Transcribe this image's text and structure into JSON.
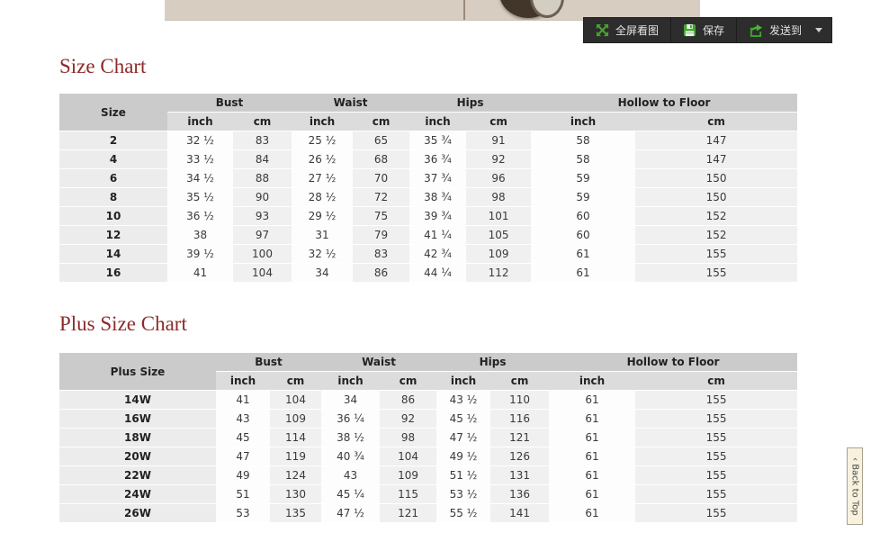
{
  "toolbar": {
    "buttons": [
      {
        "label": "全屏看图",
        "icon": "fullscreen-expand-icon"
      },
      {
        "label": "保存",
        "icon": "save-floppy-icon"
      },
      {
        "label": "发送到",
        "icon": "send-share-icon"
      }
    ],
    "bg": "#2d2d2d",
    "icon_green": "#3da62b"
  },
  "size_chart": {
    "title": "Size Chart",
    "header": {
      "size_label": "Size",
      "groups": [
        "Bust",
        "Waist",
        "Hips",
        "Hollow to Floor"
      ],
      "units": [
        "inch",
        "cm"
      ]
    },
    "rows": [
      [
        "2",
        "32 ½",
        "83",
        "25 ½",
        "65",
        "35 ¾",
        "91",
        "58",
        "147"
      ],
      [
        "4",
        "33 ½",
        "84",
        "26 ½",
        "68",
        "36 ¾",
        "92",
        "58",
        "147"
      ],
      [
        "6",
        "34 ½",
        "88",
        "27 ½",
        "70",
        "37 ¾",
        "96",
        "59",
        "150"
      ],
      [
        "8",
        "35 ½",
        "90",
        "28 ½",
        "72",
        "38 ¾",
        "98",
        "59",
        "150"
      ],
      [
        "10",
        "36 ½",
        "93",
        "29 ½",
        "75",
        "39 ¾",
        "101",
        "60",
        "152"
      ],
      [
        "12",
        "38",
        "97",
        "31",
        "79",
        "41 ¼",
        "105",
        "60",
        "152"
      ],
      [
        "14",
        "39 ½",
        "100",
        "32 ½",
        "83",
        "42 ¾",
        "109",
        "61",
        "155"
      ],
      [
        "16",
        "41",
        "104",
        "34",
        "86",
        "44 ¼",
        "112",
        "61",
        "155"
      ]
    ]
  },
  "plus_size_chart": {
    "title": "Plus Size Chart",
    "header": {
      "size_label": "Plus Size",
      "groups": [
        "Bust",
        "Waist",
        "Hips",
        "Hollow to Floor"
      ],
      "units": [
        "inch",
        "cm"
      ]
    },
    "rows": [
      [
        "14W",
        "41",
        "104",
        "34",
        "86",
        "43 ½",
        "110",
        "61",
        "155"
      ],
      [
        "16W",
        "43",
        "109",
        "36 ¼",
        "92",
        "45 ½",
        "116",
        "61",
        "155"
      ],
      [
        "18W",
        "45",
        "114",
        "38 ½",
        "98",
        "47 ½",
        "121",
        "61",
        "155"
      ],
      [
        "20W",
        "47",
        "119",
        "40 ¾",
        "104",
        "49 ½",
        "126",
        "61",
        "155"
      ],
      [
        "22W",
        "49",
        "124",
        "43",
        "109",
        "51 ½",
        "131",
        "61",
        "155"
      ],
      [
        "24W",
        "51",
        "130",
        "45 ¼",
        "115",
        "53 ½",
        "136",
        "61",
        "155"
      ],
      [
        "26W",
        "53",
        "135",
        "47 ½",
        "121",
        "55 ½",
        "141",
        "61",
        "155"
      ]
    ]
  },
  "back_to_top": {
    "chevron": "‹",
    "label": "Back to Top"
  },
  "colors": {
    "title_red": "#8e2a2a",
    "header_bg": "#cbcbcb",
    "subheader_bg": "#dcdcdc",
    "size_col_bg": "#ececec",
    "cm_col_bg": "#f0f0f0",
    "toolbar_bg": "#2d2d2d",
    "icon_green": "#3da62b",
    "photo_strip_bg": "#d7cdc1"
  }
}
